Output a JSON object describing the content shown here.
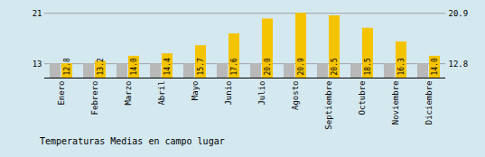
{
  "chart_data": {
    "type": "bar",
    "title": "Temperaturas Medias en campo lugar",
    "categories": [
      "Enero",
      "Febrero",
      "Marzo",
      "Abril",
      "Mayo",
      "Junio",
      "Julio",
      "Agosto",
      "Septiembre",
      "Octubre",
      "Noviembre",
      "Diciembre"
    ],
    "series": [
      {
        "color": "#B8B8B8",
        "values": [
          12.8,
          12.8,
          12.8,
          12.8,
          12.8,
          12.8,
          12.8,
          12.8,
          12.8,
          12.8,
          12.8,
          12.8
        ]
      },
      {
        "color": "#F5C400",
        "values": [
          12.8,
          13.2,
          14.0,
          14.4,
          15.7,
          17.6,
          20.0,
          20.9,
          20.5,
          18.5,
          16.3,
          14.0
        ],
        "data_labels": true,
        "value_labels": [
          "12.8",
          "13.2",
          "14.0",
          "14.4",
          "15.7",
          "17.6",
          "20.0",
          "20.9",
          "20.5",
          "18.5",
          "16.3",
          "14.0"
        ]
      }
    ],
    "ylim": [
      10.5,
      21.8
    ],
    "yticks": [
      12.8,
      20.9
    ],
    "y2lim": [
      10.5,
      21.8
    ],
    "y2ticks": [
      12.8,
      20.9
    ],
    "grid": true
  }
}
